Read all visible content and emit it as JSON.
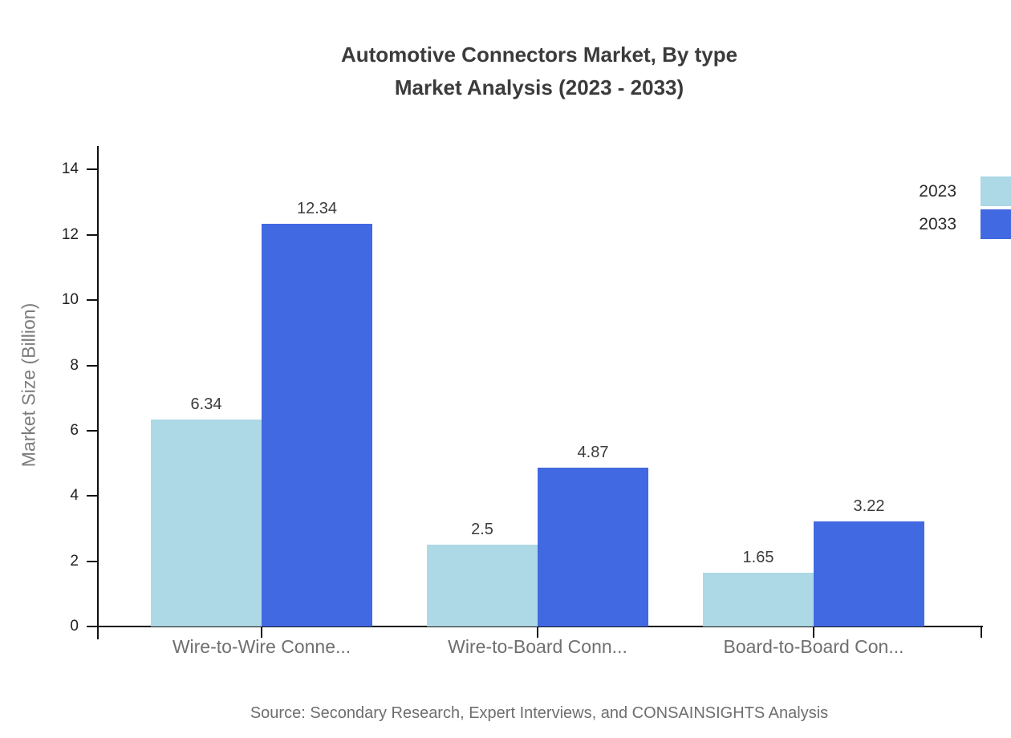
{
  "title": {
    "line1": "Automotive Connectors Market, By type",
    "line2": "Market Analysis (2023 - 2033)"
  },
  "legend": [
    {
      "label": "2023",
      "color": "#ADD8E6"
    },
    {
      "label": "2033",
      "color": "#4169E1"
    }
  ],
  "chart_data": {
    "type": "bar",
    "categories": [
      "Wire-to-Wire Conne...",
      "Wire-to-Board Conn...",
      "Board-to-Board Con..."
    ],
    "series": [
      {
        "name": "2023",
        "color": "#ADD8E6",
        "values": [
          6.34,
          2.5,
          1.65
        ]
      },
      {
        "name": "2033",
        "color": "#4169E1",
        "values": [
          12.34,
          4.87,
          3.22
        ]
      }
    ],
    "title": "Automotive Connectors Market, By type Market Analysis (2023 - 2033)",
    "xlabel": "",
    "ylabel": "Market Size (Billion)",
    "yticks": [
      0,
      2,
      4,
      6,
      8,
      10,
      12,
      14
    ],
    "ylim": [
      0,
      14.7
    ],
    "grid": false,
    "legend_position": "top-right",
    "value_labels": true
  },
  "source": "Source: Secondary Research, Expert Interviews, and CONSAINSIGHTS Analysis",
  "colors": {
    "series_2023": "#ADD8E6",
    "series_2033": "#4169E1",
    "axis": "#111111",
    "title_text": "#3b3b3b",
    "muted_text": "#6f6f6f"
  }
}
